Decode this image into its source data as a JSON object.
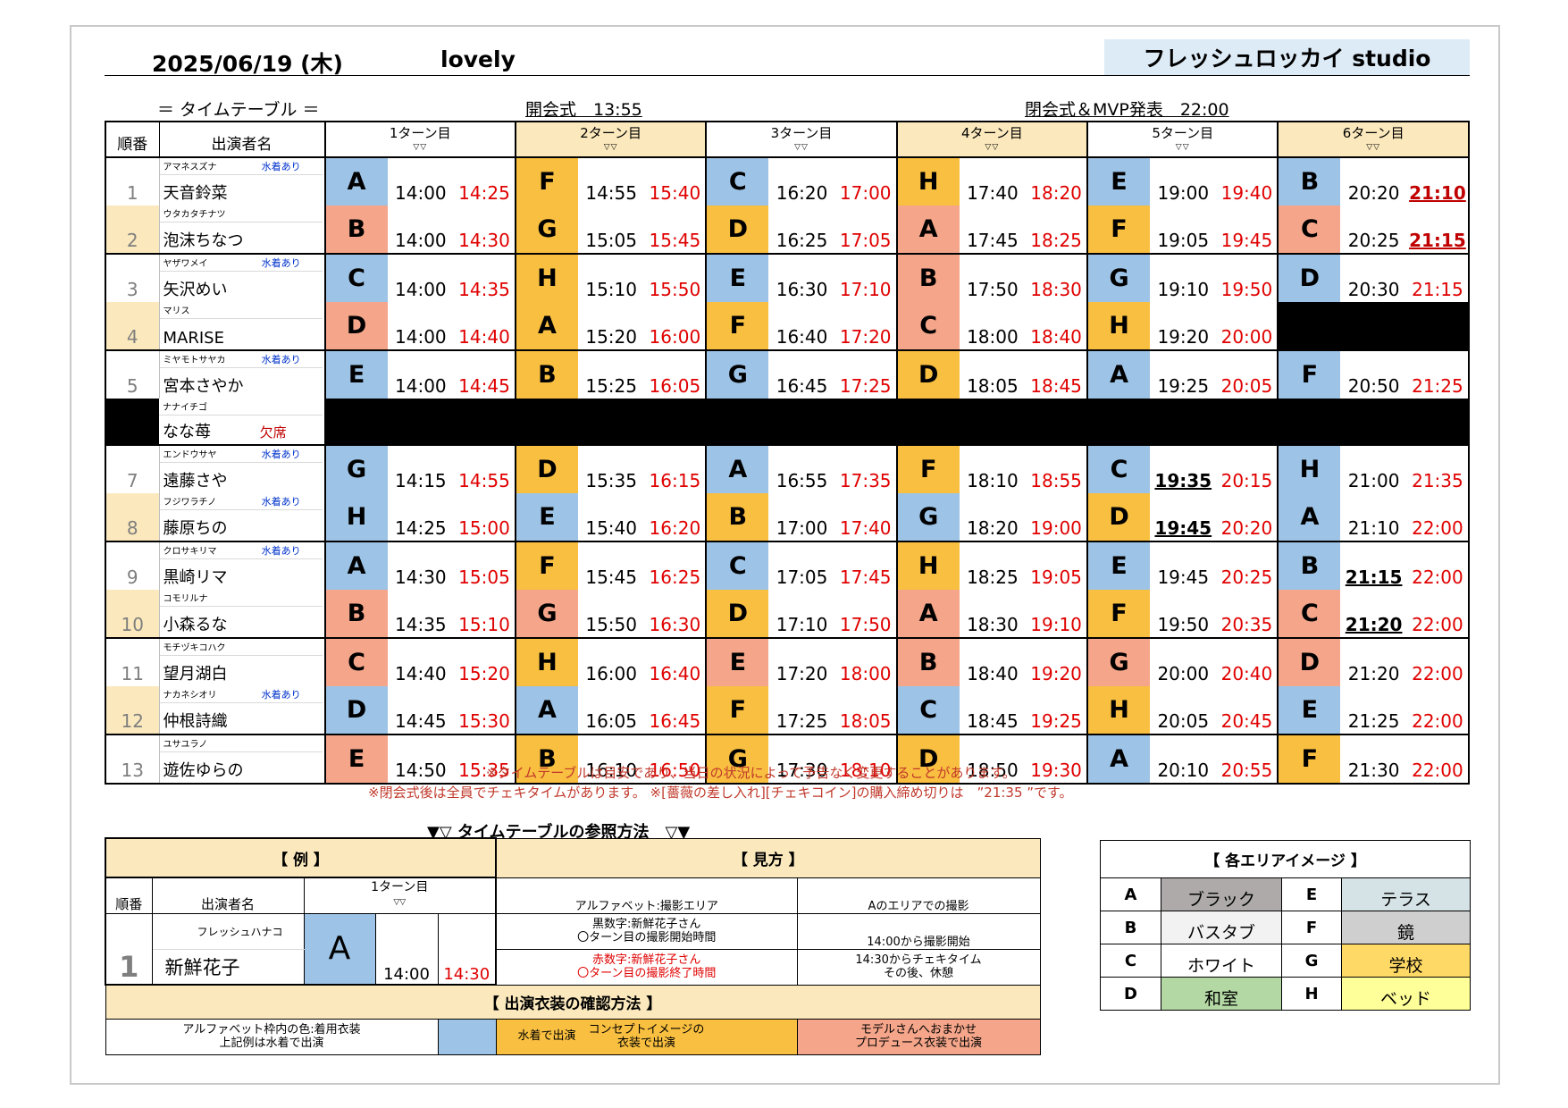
{
  "header": {
    "date": "2025/06/19 (木)",
    "title": "lovely",
    "studio": "フレッシュロッカイ studio",
    "timetable_label": "＝ タイムテーブル ＝",
    "opening": "開会式　13:55",
    "closing": "閉会式＆MVP発表　22:00"
  },
  "columns": {
    "order": "順番",
    "name": "出演者名",
    "turns": [
      "1ターン目",
      "2ターン目",
      "3ターン目",
      "4ターン目",
      "5ターン目",
      "6ターン目"
    ],
    "tri": "▽▽"
  },
  "rows": [
    {
      "no": "1",
      "kana": "アマネスズナ",
      "name": "天音鈴菜",
      "note": "水着あり",
      "slots": [
        [
          "A",
          "14:00",
          "14:25"
        ],
        [
          "F",
          "14:55",
          "15:40"
        ],
        [
          "C",
          "16:20",
          "17:00"
        ],
        [
          "H",
          "17:40",
          "18:20"
        ],
        [
          "E",
          "19:00",
          "19:40"
        ],
        [
          "B",
          "20:20",
          "21:10"
        ]
      ]
    },
    {
      "no": "2",
      "kana": "ウタカタチナツ",
      "name": "泡沫ちなつ",
      "note": "",
      "slots": [
        [
          "B",
          "14:00",
          "14:30"
        ],
        [
          "G",
          "15:05",
          "15:45"
        ],
        [
          "D",
          "16:25",
          "17:05"
        ],
        [
          "A",
          "17:45",
          "18:25"
        ],
        [
          "F",
          "19:05",
          "19:45"
        ],
        [
          "C",
          "20:25",
          "21:15"
        ]
      ]
    },
    {
      "no": "3",
      "kana": "ヤザワメイ",
      "name": "矢沢めい",
      "note": "水着あり",
      "slots": [
        [
          "C",
          "14:00",
          "14:35"
        ],
        [
          "H",
          "15:10",
          "15:50"
        ],
        [
          "E",
          "16:30",
          "17:10"
        ],
        [
          "B",
          "17:50",
          "18:30"
        ],
        [
          "G",
          "19:10",
          "19:50"
        ],
        [
          "D",
          "20:30",
          "21:15"
        ]
      ]
    },
    {
      "no": "4",
      "kana": "マリス",
      "name": "MARISE",
      "note": "",
      "slots": [
        [
          "D",
          "14:00",
          "14:40"
        ],
        [
          "A",
          "15:20",
          "16:00"
        ],
        [
          "F",
          "16:40",
          "17:20"
        ],
        [
          "C",
          "18:00",
          "18:40"
        ],
        [
          "H",
          "19:20",
          "20:00"
        ]
      ]
    },
    {
      "no": "5",
      "kana": "ミヤモトサヤカ",
      "name": "宮本さやか",
      "note": "水着あり",
      "slots": [
        [
          "E",
          "14:00",
          "14:45"
        ],
        [
          "B",
          "15:25",
          "16:05"
        ],
        [
          "G",
          "16:45",
          "17:25"
        ],
        [
          "D",
          "18:05",
          "18:45"
        ],
        [
          "A",
          "19:25",
          "20:05"
        ],
        [
          "F",
          "20:50",
          "21:25"
        ]
      ]
    },
    {
      "no": "",
      "kana": "ナナイチゴ",
      "name": "なな苺",
      "note": "欠席",
      "slots": []
    },
    {
      "no": "7",
      "kana": "エンドウサヤ",
      "name": "遠藤さや",
      "note": "水着あり",
      "slots": [
        [
          "G",
          "14:15",
          "14:55"
        ],
        [
          "D",
          "15:35",
          "16:15"
        ],
        [
          "A",
          "16:55",
          "17:35"
        ],
        [
          "F",
          "18:10",
          "18:55"
        ],
        [
          "C",
          "19:35",
          "20:15"
        ],
        [
          "H",
          "21:00",
          "21:35"
        ]
      ]
    },
    {
      "no": "8",
      "kana": "フジワラチノ",
      "name": "藤原ちの",
      "note": "水着あり",
      "slots": [
        [
          "H",
          "14:25",
          "15:00"
        ],
        [
          "E",
          "15:40",
          "16:20"
        ],
        [
          "B",
          "17:00",
          "17:40"
        ],
        [
          "G",
          "18:20",
          "19:00"
        ],
        [
          "D",
          "19:45",
          "20:20"
        ],
        [
          "A",
          "21:10",
          "22:00"
        ]
      ]
    },
    {
      "no": "9",
      "kana": "クロサキリマ",
      "name": "黒崎リマ",
      "note": "水着あり",
      "slots": [
        [
          "A",
          "14:30",
          "15:05"
        ],
        [
          "F",
          "15:45",
          "16:25"
        ],
        [
          "C",
          "17:05",
          "17:45"
        ],
        [
          "H",
          "18:25",
          "19:05"
        ],
        [
          "E",
          "19:45",
          "20:25"
        ],
        [
          "B",
          "21:15",
          "22:00"
        ]
      ]
    },
    {
      "no": "10",
      "kana": "コモリルナ",
      "name": "小森るな",
      "note": "",
      "slots": [
        [
          "B",
          "14:35",
          "15:10"
        ],
        [
          "G",
          "15:50",
          "16:30"
        ],
        [
          "D",
          "17:10",
          "17:50"
        ],
        [
          "A",
          "18:30",
          "19:10"
        ],
        [
          "F",
          "19:50",
          "20:35"
        ],
        [
          "C",
          "21:20",
          "22:00"
        ]
      ]
    },
    {
      "no": "11",
      "kana": "モチヅキコハク",
      "name": "望月湖白",
      "note": "",
      "slots": [
        [
          "C",
          "14:40",
          "15:20"
        ],
        [
          "H",
          "16:00",
          "16:40"
        ],
        [
          "E",
          "17:20",
          "18:00"
        ],
        [
          "B",
          "18:40",
          "19:20"
        ],
        [
          "G",
          "20:00",
          "20:40"
        ],
        [
          "D",
          "21:20",
          "22:00"
        ]
      ]
    },
    {
      "no": "12",
      "kana": "ナカネシオリ",
      "name": "仲根詩織",
      "note": "水着あり",
      "slots": [
        [
          "D",
          "14:45",
          "15:30"
        ],
        [
          "A",
          "16:05",
          "16:45"
        ],
        [
          "F",
          "17:25",
          "18:05"
        ],
        [
          "C",
          "18:45",
          "19:25"
        ],
        [
          "H",
          "20:05",
          "20:45"
        ],
        [
          "E",
          "21:25",
          "22:00"
        ]
      ]
    },
    {
      "no": "13",
      "kana": "ユサユラノ",
      "name": "遊佐ゆらの",
      "note": "",
      "slots": [
        [
          "E",
          "14:50",
          "15:35"
        ],
        [
          "B",
          "16:10",
          "16:50"
        ],
        [
          "G",
          "17:30",
          "18:10"
        ],
        [
          "D",
          "18:50",
          "19:30"
        ],
        [
          "A",
          "20:10",
          "20:55"
        ],
        [
          "F",
          "21:30",
          "22:00"
        ]
      ]
    }
  ],
  "notes": [
    "※タイムテーブルは目安であり、当日の状況によって予告なく変更することがあります。",
    "※閉会式後は全員でチェキタイムがあります。 ※[薔薇の差し入れ][チェキコイン]の購入締め切りは　”21:35 ”です。"
  ],
  "howto": {
    "title": "▼▽ タイムテーブルの参照方法　▽▼",
    "example_title": "【 例 】",
    "view_title": "【 見方 】",
    "ex_order": "順番",
    "ex_name_h": "出演者名",
    "ex_turn": "1ターン目",
    "ex_tri": "▽▽",
    "ex_no": "1",
    "ex_kana": "フレッシュハナコ",
    "ex_name": "新鮮花子",
    "ex_letter": "A",
    "ex_start": "14:00",
    "ex_end": "14:30",
    "v1a": "アルファベット:撮影エリア",
    "v1b": "Aのエリアでの撮影",
    "v2a1": "黒数字:新鮮花子さん",
    "v2a2": "〇ターン目の撮影開始時間",
    "v2b": "14:00から撮影開始",
    "v3a1": "赤数字:新鮮花子さん",
    "v3a2": "〇ターン目の撮影終了時間",
    "v3b1": "14:30からチェキタイム",
    "v3b2": "その後、休憩",
    "costume_title": "【 出演衣装の確認方法 】",
    "c1a": "アルファベット枠内の色:着用衣装",
    "c1b": "上記例は水着で出演",
    "c2": "水着で出演",
    "c3a": "コンセプトイメージの",
    "c3b": "衣装で出演",
    "c4a": "モデルさんへおまかせ",
    "c4b": "プロデュース衣装で出演"
  },
  "areas": {
    "title": "【 各エリアイメージ 】",
    "items": [
      {
        "key": "A",
        "label": "ブラック",
        "color": "#aeaaaa"
      },
      {
        "key": "E",
        "label": "テラス",
        "color": "#d6e3e6"
      },
      {
        "key": "B",
        "label": "バスタブ",
        "color": "#f2f2f2"
      },
      {
        "key": "F",
        "label": "鏡",
        "color": "#cfcfcf"
      },
      {
        "key": "C",
        "label": "ホワイト",
        "color": "#ffffff"
      },
      {
        "key": "G",
        "label": "学校",
        "color": "#ffd966"
      },
      {
        "key": "D",
        "label": "和室",
        "color": "#b4d8a4"
      },
      {
        "key": "H",
        "label": "ベッド",
        "color": "#ffff99"
      }
    ]
  },
  "colors": {
    "swimsuit": "#9dc3e6",
    "concept": "#f9bf40",
    "produce": "#f4a58a",
    "end_time": "#e00000"
  },
  "costume_map": [
    [
      "blue",
      "orange",
      "blue",
      "orange",
      "blue",
      "blue"
    ],
    [
      "red",
      "orange",
      "orange",
      "red",
      "orange",
      "red"
    ],
    [
      "blue",
      "orange",
      "blue",
      "red",
      "blue",
      "blue"
    ],
    [
      "red",
      "orange",
      "orange",
      "red",
      "orange"
    ],
    [
      "blue",
      "orange",
      "blue",
      "orange",
      "blue",
      "blue"
    ],
    [],
    [
      "blue",
      "orange",
      "blue",
      "orange",
      "blue",
      "blue"
    ],
    [
      "blue",
      "blue",
      "orange",
      "blue",
      "orange",
      "blue"
    ],
    [
      "blue",
      "orange",
      "blue",
      "orange",
      "blue",
      "blue"
    ],
    [
      "red",
      "red",
      "orange",
      "red",
      "orange",
      "red"
    ],
    [
      "red",
      "orange",
      "red",
      "red",
      "red",
      "red"
    ],
    [
      "blue",
      "blue",
      "orange",
      "blue",
      "orange",
      "blue"
    ],
    [
      "red",
      "orange",
      "orange",
      "orange",
      "blue",
      "orange"
    ]
  ],
  "bold_start": [
    [
      7,
      4
    ],
    [
      8,
      4
    ],
    [
      9,
      5
    ],
    [
      10,
      5
    ]
  ],
  "bold_end": [
    [
      1,
      5
    ],
    [
      2,
      5
    ]
  ]
}
